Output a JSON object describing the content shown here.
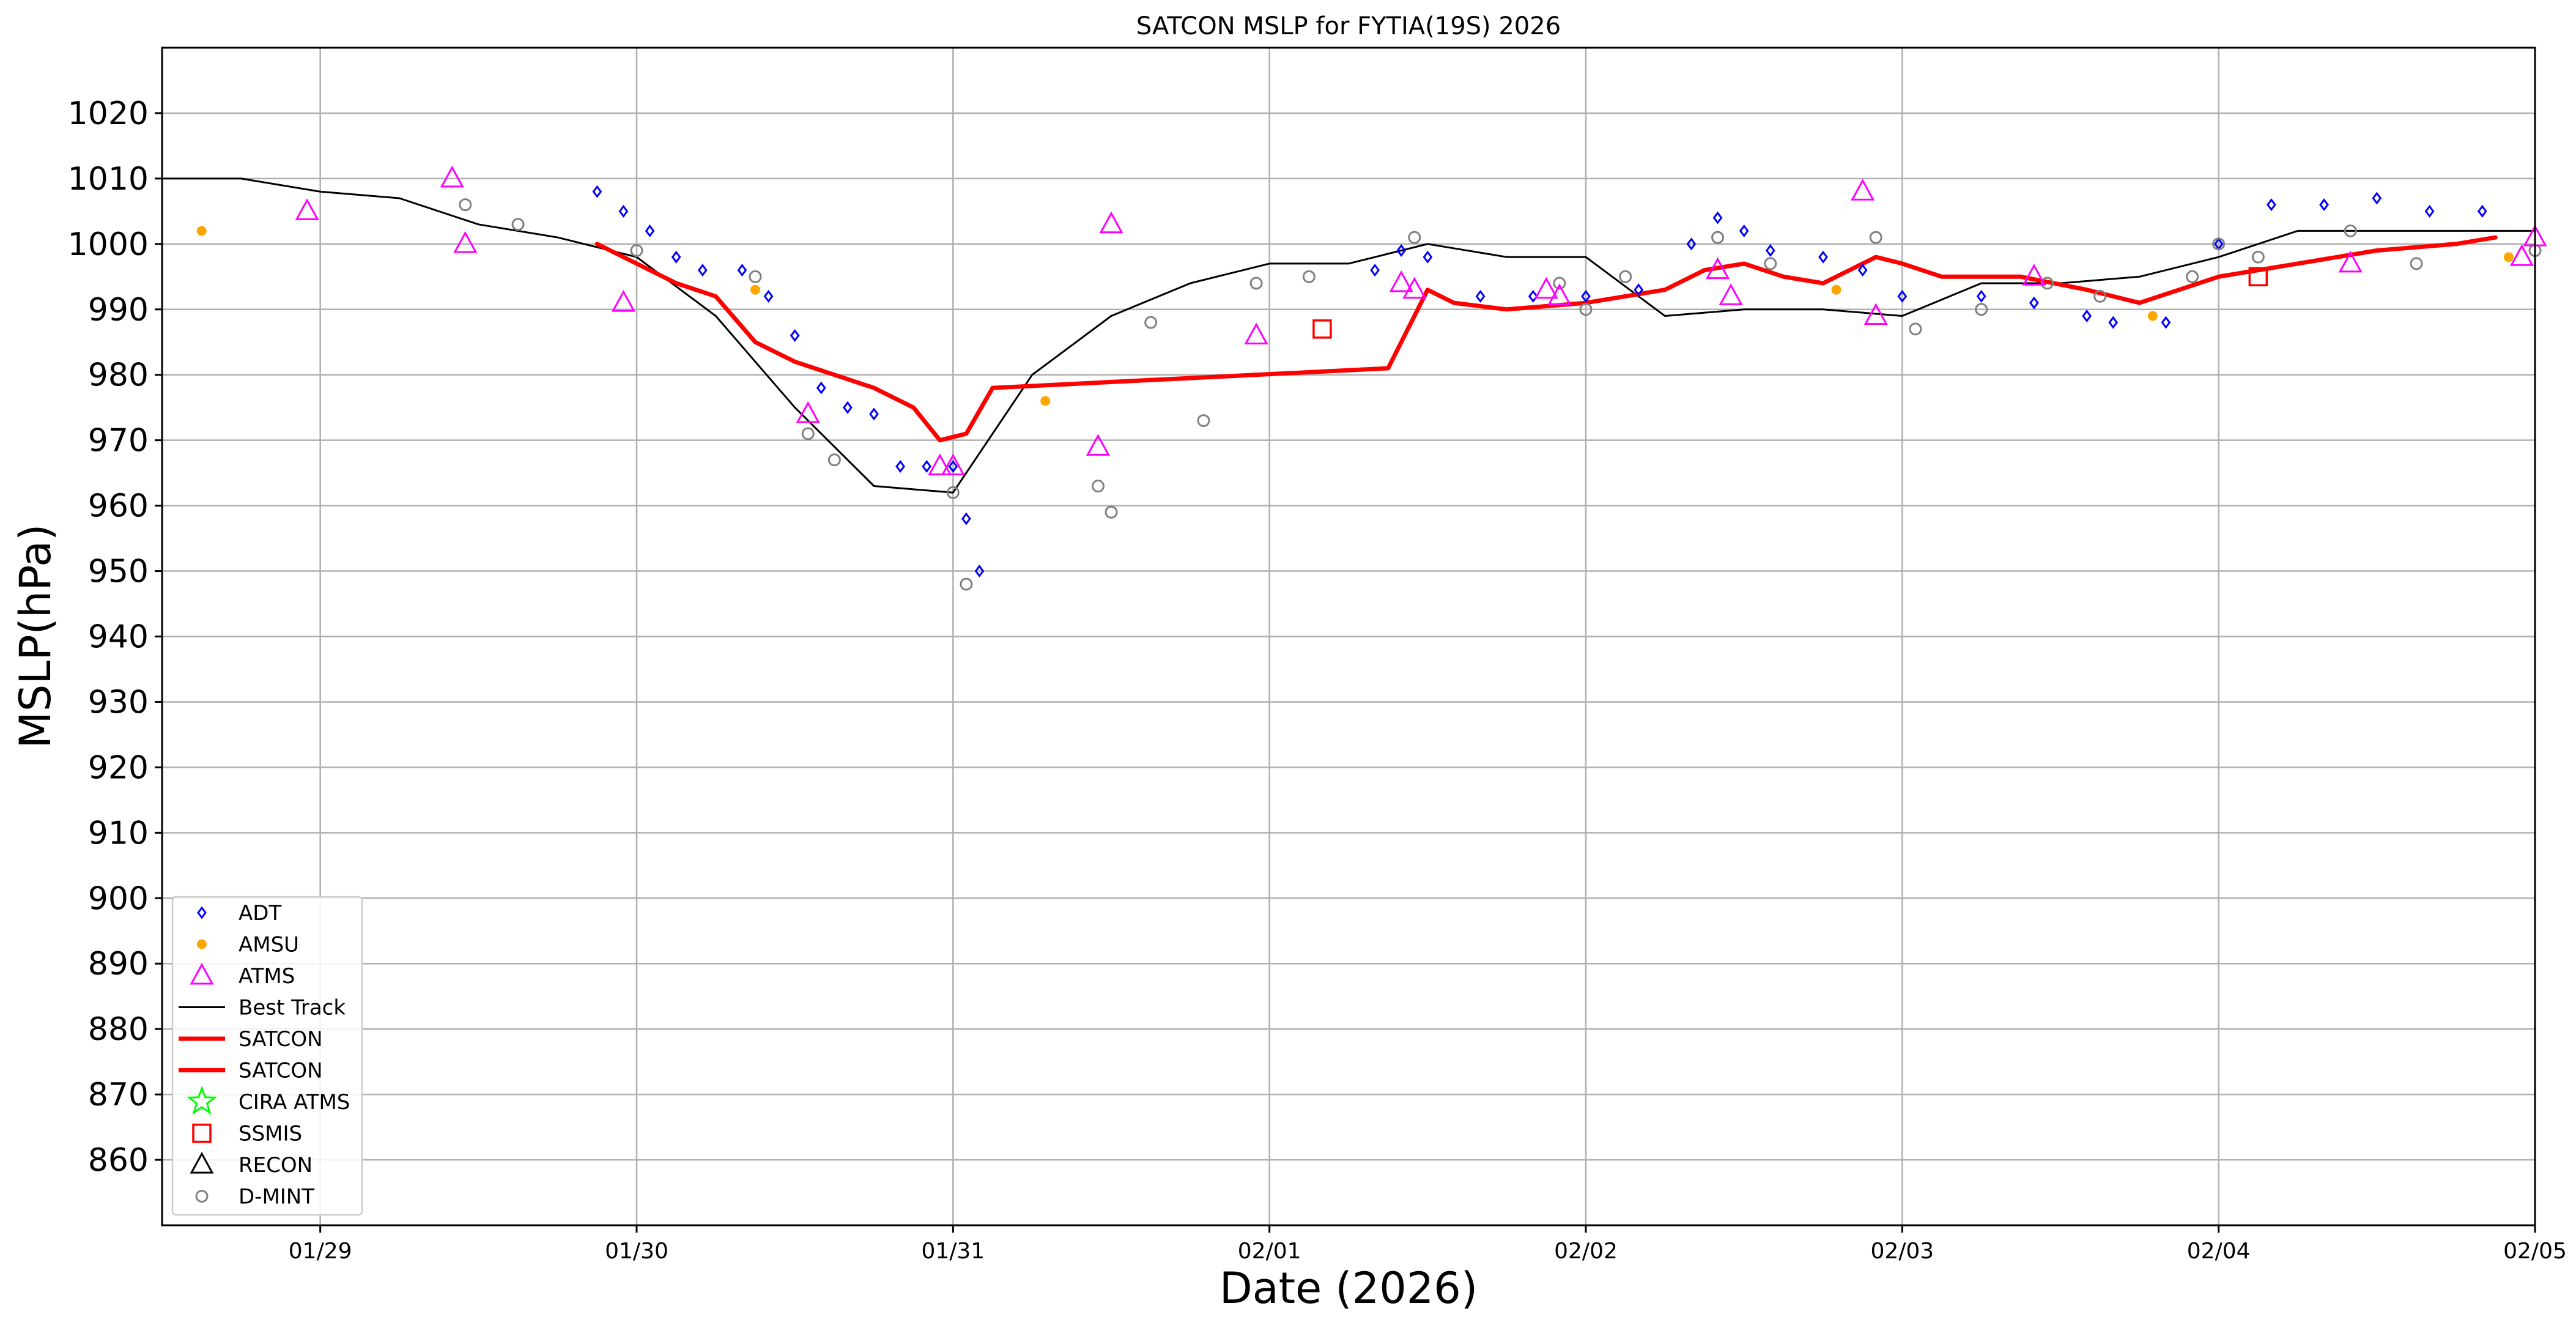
{
  "chart_data": {
    "type": "scatter",
    "title": "SATCON MSLP for FYTIA(19S) 2026",
    "xlabel": "Date (2026)",
    "ylabel": "MSLP(hPa)",
    "xlim": [
      "01/28 12:00",
      "02/05 00:00"
    ],
    "ylim": [
      850,
      1030
    ],
    "x_tick_labels": [
      "01/29",
      "01/30",
      "01/31",
      "02/01",
      "02/02",
      "02/03",
      "02/04",
      "02/05"
    ],
    "x_ticks": [
      "01/29 00:00",
      "01/30 00:00",
      "01/31 00:00",
      "02/01 00:00",
      "02/02 00:00",
      "02/03 00:00",
      "02/04 00:00",
      "02/05 00:00"
    ],
    "y_ticks": [
      860,
      870,
      880,
      890,
      900,
      910,
      920,
      930,
      940,
      950,
      960,
      970,
      980,
      990,
      1000,
      1010,
      1020
    ],
    "grid": true,
    "legend_position": "lower-left",
    "legend": [
      {
        "label": "ADT",
        "marker": "diamond",
        "color": "#0000ff"
      },
      {
        "label": "AMSU",
        "marker": "dot",
        "color": "#ffa500"
      },
      {
        "label": "ATMS",
        "marker": "triangle",
        "color": "#ff00ff"
      },
      {
        "label": "Best Track",
        "marker": "line-thin",
        "color": "#000000"
      },
      {
        "label": "SATCON",
        "marker": "line-thick",
        "color": "#ff0000"
      },
      {
        "label": "SATCON",
        "marker": "line-thick",
        "color": "#ff0000"
      },
      {
        "label": "CIRA ATMS",
        "marker": "star",
        "color": "#00ff00"
      },
      {
        "label": "SSMIS",
        "marker": "square",
        "color": "#ff0000"
      },
      {
        "label": "RECON",
        "marker": "triangle",
        "color": "#000000"
      },
      {
        "label": "D-MINT",
        "marker": "circle",
        "color": "#808080"
      }
    ],
    "series": [
      {
        "name": "Best Track",
        "style": "line-thin",
        "color": "#000000",
        "points": [
          [
            "01/28 12:00",
            1010
          ],
          [
            "01/28 18:00",
            1010
          ],
          [
            "01/29 00:00",
            1008
          ],
          [
            "01/29 06:00",
            1007
          ],
          [
            "01/29 12:00",
            1003
          ],
          [
            "01/29 18:00",
            1001
          ],
          [
            "01/30 00:00",
            998
          ],
          [
            "01/30 06:00",
            989
          ],
          [
            "01/30 12:00",
            975
          ],
          [
            "01/30 18:00",
            963
          ],
          [
            "01/31 00:00",
            962
          ],
          [
            "01/31 06:00",
            980
          ],
          [
            "01/31 12:00",
            989
          ],
          [
            "01/31 18:00",
            994
          ],
          [
            "02/01 00:00",
            997
          ],
          [
            "02/01 06:00",
            997
          ],
          [
            "02/01 12:00",
            1000
          ],
          [
            "02/01 18:00",
            998
          ],
          [
            "02/02 00:00",
            998
          ],
          [
            "02/02 06:00",
            989
          ],
          [
            "02/02 12:00",
            990
          ],
          [
            "02/02 18:00",
            990
          ],
          [
            "02/03 00:00",
            989
          ],
          [
            "02/03 06:00",
            994
          ],
          [
            "02/03 12:00",
            994
          ],
          [
            "02/03 18:00",
            995
          ],
          [
            "02/04 00:00",
            998
          ],
          [
            "02/04 06:00",
            1002
          ],
          [
            "02/04 12:00",
            1002
          ],
          [
            "02/04 18:00",
            1002
          ],
          [
            "02/05 00:00",
            1002
          ]
        ]
      },
      {
        "name": "SATCON",
        "style": "line-thick",
        "color": "#ff0000",
        "points": [
          [
            "01/29 21:00",
            1000
          ],
          [
            "01/30 00:00",
            997
          ],
          [
            "01/30 03:00",
            994
          ],
          [
            "01/30 06:00",
            992
          ],
          [
            "01/30 09:00",
            985
          ],
          [
            "01/30 12:00",
            982
          ],
          [
            "01/30 15:00",
            980
          ],
          [
            "01/30 18:00",
            978
          ],
          [
            "01/30 21:00",
            975
          ],
          [
            "01/30 23:00",
            970
          ],
          [
            "01/31 01:00",
            971
          ],
          [
            "01/31 03:00",
            978
          ],
          [
            "02/01 09:00",
            981
          ],
          [
            "02/01 12:00",
            993
          ],
          [
            "02/01 14:00",
            991
          ],
          [
            "02/01 18:00",
            990
          ],
          [
            "02/02 00:00",
            991
          ],
          [
            "02/02 06:00",
            993
          ],
          [
            "02/02 09:00",
            996
          ],
          [
            "02/02 12:00",
            997
          ],
          [
            "02/02 15:00",
            995
          ],
          [
            "02/02 18:00",
            994
          ],
          [
            "02/02 22:00",
            998
          ],
          [
            "02/03 00:00",
            997
          ],
          [
            "02/03 03:00",
            995
          ],
          [
            "02/03 09:00",
            995
          ],
          [
            "02/03 14:00",
            993
          ],
          [
            "02/03 18:00",
            991
          ],
          [
            "02/04 00:00",
            995
          ],
          [
            "02/04 06:00",
            997
          ],
          [
            "02/04 12:00",
            999
          ],
          [
            "02/04 18:00",
            1000
          ],
          [
            "02/04 21:00",
            1001
          ]
        ]
      },
      {
        "name": "ADT",
        "style": "diamond",
        "color": "#0000ff",
        "points": [
          [
            "01/29 21:00",
            1008
          ],
          [
            "01/29 23:00",
            1005
          ],
          [
            "01/30 01:00",
            1002
          ],
          [
            "01/30 03:00",
            998
          ],
          [
            "01/30 05:00",
            996
          ],
          [
            "01/30 08:00",
            996
          ],
          [
            "01/30 10:00",
            992
          ],
          [
            "01/30 12:00",
            986
          ],
          [
            "01/30 14:00",
            978
          ],
          [
            "01/30 16:00",
            975
          ],
          [
            "01/30 18:00",
            974
          ],
          [
            "01/30 20:00",
            966
          ],
          [
            "01/30 22:00",
            966
          ],
          [
            "01/31 00:00",
            966
          ],
          [
            "01/31 01:00",
            958
          ],
          [
            "01/31 02:00",
            950
          ],
          [
            "02/01 08:00",
            996
          ],
          [
            "02/01 10:00",
            999
          ],
          [
            "02/01 12:00",
            998
          ],
          [
            "02/01 16:00",
            992
          ],
          [
            "02/01 20:00",
            992
          ],
          [
            "02/02 00:00",
            992
          ],
          [
            "02/02 04:00",
            993
          ],
          [
            "02/02 08:00",
            1000
          ],
          [
            "02/02 10:00",
            1004
          ],
          [
            "02/02 12:00",
            1002
          ],
          [
            "02/02 14:00",
            999
          ],
          [
            "02/02 18:00",
            998
          ],
          [
            "02/02 21:00",
            996
          ],
          [
            "02/03 00:00",
            992
          ],
          [
            "02/03 06:00",
            992
          ],
          [
            "02/03 10:00",
            991
          ],
          [
            "02/03 14:00",
            989
          ],
          [
            "02/03 16:00",
            988
          ],
          [
            "02/03 20:00",
            988
          ],
          [
            "02/04 00:00",
            1000
          ],
          [
            "02/04 04:00",
            1006
          ],
          [
            "02/04 08:00",
            1006
          ],
          [
            "02/04 12:00",
            1007
          ],
          [
            "02/04 16:00",
            1005
          ],
          [
            "02/04 20:00",
            1005
          ]
        ]
      },
      {
        "name": "AMSU",
        "style": "dot",
        "color": "#ffa500",
        "points": [
          [
            "01/28 15:00",
            1002
          ],
          [
            "01/30 09:00",
            993
          ],
          [
            "01/31 07:00",
            976
          ],
          [
            "02/02 19:00",
            993
          ],
          [
            "02/03 19:00",
            989
          ],
          [
            "02/04 22:00",
            998
          ]
        ]
      },
      {
        "name": "ATMS",
        "style": "triangle",
        "color": "#ff00ff",
        "points": [
          [
            "01/28 23:00",
            1005
          ],
          [
            "01/29 10:00",
            1010
          ],
          [
            "01/29 11:00",
            1000
          ],
          [
            "01/29 23:00",
            991
          ],
          [
            "01/30 13:00",
            974
          ],
          [
            "01/30 23:00",
            966
          ],
          [
            "01/31 00:00",
            966
          ],
          [
            "01/31 11:00",
            969
          ],
          [
            "01/31 12:00",
            1003
          ],
          [
            "01/31 23:00",
            986
          ],
          [
            "02/01 10:00",
            994
          ],
          [
            "02/01 11:00",
            993
          ],
          [
            "02/01 21:00",
            993
          ],
          [
            "02/01 22:00",
            992
          ],
          [
            "02/02 10:00",
            996
          ],
          [
            "02/02 11:00",
            992
          ],
          [
            "02/02 21:00",
            1008
          ],
          [
            "02/02 22:00",
            989
          ],
          [
            "02/03 10:00",
            995
          ],
          [
            "02/04 10:00",
            997
          ],
          [
            "02/04 23:00",
            998
          ],
          [
            "02/05 00:00",
            1001
          ]
        ]
      },
      {
        "name": "SSMIS",
        "style": "square",
        "color": "#ff0000",
        "points": [
          [
            "02/01 04:00",
            987
          ],
          [
            "02/04 03:00",
            995
          ]
        ]
      },
      {
        "name": "D-MINT",
        "style": "circle",
        "color": "#808080",
        "points": [
          [
            "01/29 11:00",
            1006
          ],
          [
            "01/29 15:00",
            1003
          ],
          [
            "01/30 00:00",
            999
          ],
          [
            "01/30 09:00",
            995
          ],
          [
            "01/30 13:00",
            971
          ],
          [
            "01/30 15:00",
            967
          ],
          [
            "01/31 00:00",
            962
          ],
          [
            "01/31 01:00",
            948
          ],
          [
            "01/31 11:00",
            963
          ],
          [
            "01/31 12:00",
            959
          ],
          [
            "01/31 15:00",
            988
          ],
          [
            "01/31 19:00",
            973
          ],
          [
            "01/31 23:00",
            994
          ],
          [
            "02/01 03:00",
            995
          ],
          [
            "02/01 11:00",
            1001
          ],
          [
            "02/01 22:00",
            994
          ],
          [
            "02/02 00:00",
            990
          ],
          [
            "02/02 03:00",
            995
          ],
          [
            "02/02 10:00",
            1001
          ],
          [
            "02/02 14:00",
            997
          ],
          [
            "02/02 22:00",
            1001
          ],
          [
            "02/03 01:00",
            987
          ],
          [
            "02/03 06:00",
            990
          ],
          [
            "02/03 11:00",
            994
          ],
          [
            "02/03 15:00",
            992
          ],
          [
            "02/03 22:00",
            995
          ],
          [
            "02/04 00:00",
            1000
          ],
          [
            "02/04 03:00",
            998
          ],
          [
            "02/04 10:00",
            1002
          ],
          [
            "02/04 15:00",
            997
          ],
          [
            "02/05 00:00",
            999
          ]
        ]
      }
    ]
  }
}
